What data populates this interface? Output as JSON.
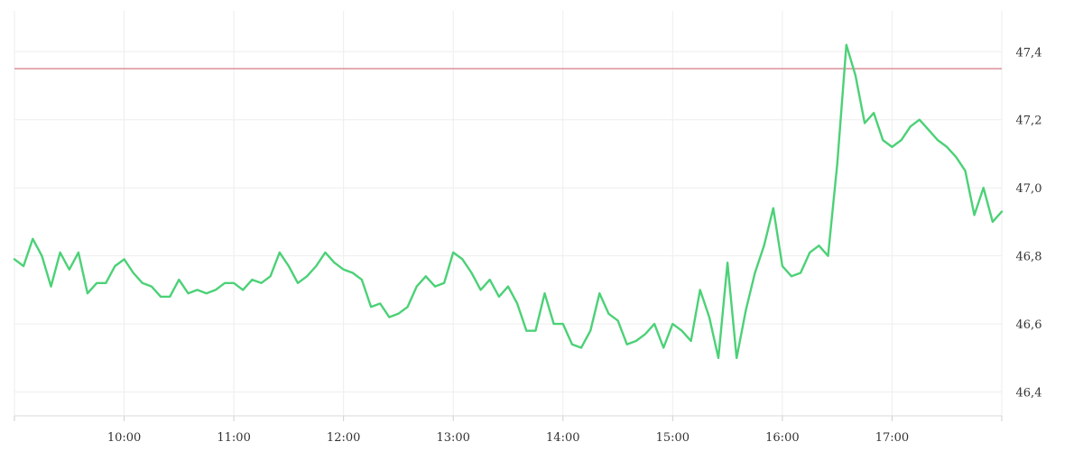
{
  "chart_data": {
    "type": "line",
    "title": "",
    "xlabel": "",
    "ylabel": "",
    "grid": true,
    "x_axis": {
      "range": [
        "09:00",
        "18:00"
      ],
      "tick_labels": [
        "10:00",
        "11:00",
        "12:00",
        "13:00",
        "14:00",
        "15:00",
        "16:00",
        "17:00"
      ]
    },
    "y_axis": {
      "position": "right",
      "range": [
        46.33,
        47.52
      ],
      "ticks": [
        46.4,
        46.6,
        46.8,
        47.0,
        47.2,
        47.4
      ],
      "tick_labels": [
        "46,4",
        "46,6",
        "46,8",
        "47,0",
        "47,2",
        "47,4"
      ]
    },
    "reference_line": {
      "value": 47.35,
      "color": "#d47a87"
    },
    "series": [
      {
        "color": "#4cd177",
        "points": [
          [
            "09:00",
            46.79
          ],
          [
            "09:05",
            46.77
          ],
          [
            "09:10",
            46.85
          ],
          [
            "09:15",
            46.8
          ],
          [
            "09:20",
            46.71
          ],
          [
            "09:25",
            46.81
          ],
          [
            "09:30",
            46.76
          ],
          [
            "09:35",
            46.81
          ],
          [
            "09:40",
            46.69
          ],
          [
            "09:45",
            46.72
          ],
          [
            "09:50",
            46.72
          ],
          [
            "09:55",
            46.77
          ],
          [
            "10:00",
            46.79
          ],
          [
            "10:05",
            46.75
          ],
          [
            "10:10",
            46.72
          ],
          [
            "10:15",
            46.71
          ],
          [
            "10:20",
            46.68
          ],
          [
            "10:25",
            46.68
          ],
          [
            "10:30",
            46.73
          ],
          [
            "10:35",
            46.69
          ],
          [
            "10:40",
            46.7
          ],
          [
            "10:45",
            46.69
          ],
          [
            "10:50",
            46.7
          ],
          [
            "10:55",
            46.72
          ],
          [
            "11:00",
            46.72
          ],
          [
            "11:05",
            46.7
          ],
          [
            "11:10",
            46.73
          ],
          [
            "11:15",
            46.72
          ],
          [
            "11:20",
            46.74
          ],
          [
            "11:25",
            46.81
          ],
          [
            "11:30",
            46.77
          ],
          [
            "11:35",
            46.72
          ],
          [
            "11:40",
            46.74
          ],
          [
            "11:45",
            46.77
          ],
          [
            "11:50",
            46.81
          ],
          [
            "11:55",
            46.78
          ],
          [
            "12:00",
            46.76
          ],
          [
            "12:05",
            46.75
          ],
          [
            "12:10",
            46.73
          ],
          [
            "12:15",
            46.65
          ],
          [
            "12:20",
            46.66
          ],
          [
            "12:25",
            46.62
          ],
          [
            "12:30",
            46.63
          ],
          [
            "12:35",
            46.65
          ],
          [
            "12:40",
            46.71
          ],
          [
            "12:45",
            46.74
          ],
          [
            "12:50",
            46.71
          ],
          [
            "12:55",
            46.72
          ],
          [
            "13:00",
            46.81
          ],
          [
            "13:05",
            46.79
          ],
          [
            "13:10",
            46.75
          ],
          [
            "13:15",
            46.7
          ],
          [
            "13:20",
            46.73
          ],
          [
            "13:25",
            46.68
          ],
          [
            "13:30",
            46.71
          ],
          [
            "13:35",
            46.66
          ],
          [
            "13:40",
            46.58
          ],
          [
            "13:45",
            46.58
          ],
          [
            "13:50",
            46.69
          ],
          [
            "13:55",
            46.6
          ],
          [
            "14:00",
            46.6
          ],
          [
            "14:05",
            46.54
          ],
          [
            "14:10",
            46.53
          ],
          [
            "14:15",
            46.58
          ],
          [
            "14:20",
            46.69
          ],
          [
            "14:25",
            46.63
          ],
          [
            "14:30",
            46.61
          ],
          [
            "14:35",
            46.54
          ],
          [
            "14:40",
            46.55
          ],
          [
            "14:45",
            46.57
          ],
          [
            "14:50",
            46.6
          ],
          [
            "14:55",
            46.53
          ],
          [
            "15:00",
            46.6
          ],
          [
            "15:05",
            46.58
          ],
          [
            "15:10",
            46.55
          ],
          [
            "15:15",
            46.7
          ],
          [
            "15:20",
            46.62
          ],
          [
            "15:25",
            46.5
          ],
          [
            "15:30",
            46.78
          ],
          [
            "15:35",
            46.5
          ],
          [
            "15:40",
            46.64
          ],
          [
            "15:45",
            46.75
          ],
          [
            "15:50",
            46.83
          ],
          [
            "15:55",
            46.94
          ],
          [
            "16:00",
            46.77
          ],
          [
            "16:05",
            46.74
          ],
          [
            "16:10",
            46.75
          ],
          [
            "16:15",
            46.81
          ],
          [
            "16:20",
            46.83
          ],
          [
            "16:25",
            46.8
          ],
          [
            "16:30",
            47.07
          ],
          [
            "16:35",
            47.42
          ],
          [
            "16:40",
            47.33
          ],
          [
            "16:45",
            47.19
          ],
          [
            "16:50",
            47.22
          ],
          [
            "16:55",
            47.14
          ],
          [
            "17:00",
            47.12
          ],
          [
            "17:05",
            47.14
          ],
          [
            "17:10",
            47.18
          ],
          [
            "17:15",
            47.2
          ],
          [
            "17:20",
            47.17
          ],
          [
            "17:25",
            47.14
          ],
          [
            "17:30",
            47.12
          ],
          [
            "17:35",
            47.09
          ],
          [
            "17:40",
            47.05
          ],
          [
            "17:45",
            46.92
          ],
          [
            "17:50",
            47.0
          ],
          [
            "17:55",
            46.9
          ],
          [
            "18:00",
            46.93
          ]
        ]
      }
    ]
  }
}
